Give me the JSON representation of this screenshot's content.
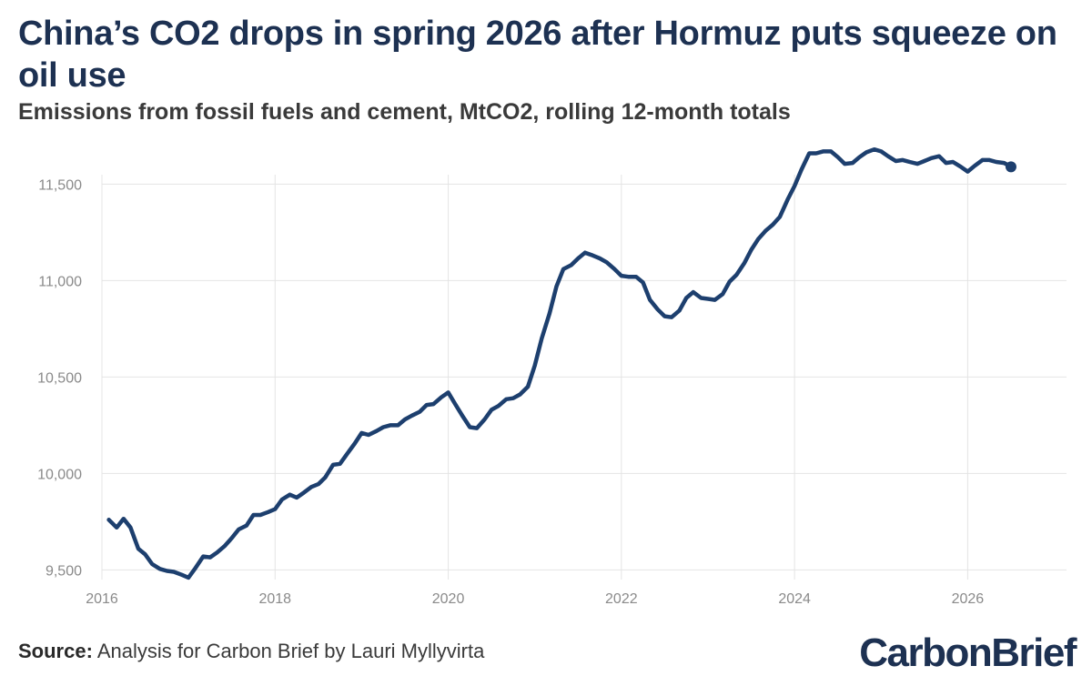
{
  "title": "China’s CO2 drops in spring 2026 after Hormuz puts squeeze on oil use",
  "subtitle": "Emissions from fossil fuels and cement, MtCO2, rolling 12-month totals",
  "source_label": "Source:",
  "source_text": "Analysis for Carbon Brief by Lauri Myllyvirta",
  "logo": {
    "part1": "Carbon",
    "part2": "Brief"
  },
  "colors": {
    "line": "#1d3f6e",
    "title": "#1d3152",
    "grid": "#e4e4e4"
  },
  "chart_data": {
    "type": "line",
    "xlim": [
      2016,
      2026.7
    ],
    "ylim": [
      9450,
      11700
    ],
    "x_ticks": [
      2016,
      2018,
      2020,
      2022,
      2024,
      2026
    ],
    "x_tick_labels": [
      "2016",
      "2018",
      "2020",
      "2022",
      "2024",
      "2026"
    ],
    "y_ticks": [
      9500,
      10000,
      10500,
      11000,
      11500
    ],
    "y_tick_labels": [
      "9,500",
      "10,000",
      "10,500",
      "11,000",
      "11,500"
    ],
    "grid": true,
    "legend": "none",
    "end_marker": true,
    "series": [
      {
        "x": [
          2016.08,
          2016.17,
          2016.25,
          2016.33,
          2016.42,
          2016.5,
          2016.58,
          2016.67,
          2016.75,
          2016.83,
          2016.92,
          2017.0,
          2017.08,
          2017.17,
          2017.25,
          2017.33,
          2017.42,
          2017.5,
          2017.58,
          2017.67,
          2017.75,
          2017.83,
          2017.92,
          2018.0,
          2018.08,
          2018.17,
          2018.25,
          2018.33,
          2018.42,
          2018.5,
          2018.58,
          2018.67,
          2018.75,
          2018.83,
          2018.92,
          2019.0,
          2019.08,
          2019.17,
          2019.25,
          2019.33,
          2019.42,
          2019.5,
          2019.58,
          2019.67,
          2019.75,
          2019.83,
          2019.92,
          2020.0,
          2020.08,
          2020.17,
          2020.25,
          2020.33,
          2020.42,
          2020.5,
          2020.58,
          2020.67,
          2020.75,
          2020.83,
          2020.92,
          2021.0,
          2021.08,
          2021.17,
          2021.25,
          2021.33,
          2021.42,
          2021.5,
          2021.58,
          2021.67,
          2021.75,
          2021.83,
          2021.92,
          2022.0,
          2022.08,
          2022.17,
          2022.25,
          2022.33,
          2022.42,
          2022.5,
          2022.58,
          2022.67,
          2022.75,
          2022.83,
          2022.92,
          2023.0,
          2023.08,
          2023.17,
          2023.25,
          2023.33,
          2023.42,
          2023.5,
          2023.58,
          2023.67,
          2023.75,
          2023.83,
          2023.92,
          2024.0,
          2024.08,
          2024.17,
          2024.25,
          2024.33,
          2024.42,
          2024.5,
          2024.58,
          2024.67,
          2024.75,
          2024.83,
          2024.92,
          2025.0,
          2025.08,
          2025.17,
          2025.25,
          2025.33,
          2025.42,
          2025.5,
          2025.58,
          2025.67,
          2025.75,
          2025.83,
          2025.92,
          2026.0,
          2026.08,
          2026.17,
          2026.25,
          2026.33,
          2026.42,
          2026.5
        ],
        "y": [
          9760,
          9720,
          9765,
          9720,
          9610,
          9580,
          9530,
          9505,
          9495,
          9490,
          9475,
          9460,
          9510,
          9570,
          9565,
          9590,
          9625,
          9665,
          9710,
          9730,
          9785,
          9785,
          9800,
          9815,
          9865,
          9890,
          9875,
          9900,
          9930,
          9945,
          9980,
          10045,
          10050,
          10100,
          10155,
          10210,
          10200,
          10220,
          10240,
          10250,
          10250,
          10280,
          10300,
          10320,
          10355,
          10360,
          10395,
          10420,
          10360,
          10295,
          10240,
          10235,
          10280,
          10330,
          10350,
          10385,
          10390,
          10410,
          10450,
          10560,
          10700,
          10830,
          10970,
          11060,
          11080,
          11115,
          11145,
          11130,
          11115,
          11095,
          11060,
          11025,
          11020,
          11020,
          10990,
          10900,
          10850,
          10815,
          10810,
          10845,
          10910,
          10940,
          10910,
          10905,
          10900,
          10930,
          10995,
          11030,
          11090,
          11160,
          11215,
          11260,
          11290,
          11330,
          11420,
          11490,
          11575,
          11660,
          11660,
          11670,
          11670,
          11640,
          11605,
          11610,
          11640,
          11665,
          11680,
          11670,
          11645,
          11620,
          11625,
          11615,
          11605,
          11620,
          11635,
          11645,
          11610,
          11615,
          11590,
          11565,
          11595,
          11625,
          11625,
          11615,
          11610,
          11590
        ]
      }
    ]
  }
}
